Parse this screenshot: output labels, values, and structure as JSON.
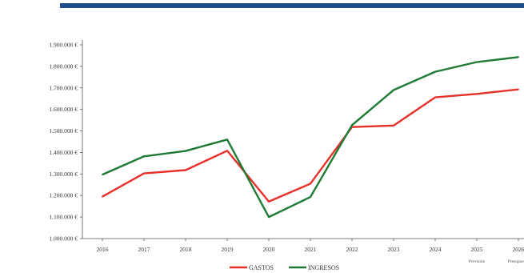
{
  "chart_data": {
    "type": "line",
    "categories": [
      "2016",
      "2017",
      "2018",
      "2019",
      "2020",
      "2021",
      "2022",
      "2023",
      "2024",
      "2025",
      "2026"
    ],
    "series": [
      {
        "name": "GASTOS",
        "color": "#e8302a",
        "values": [
          1195000,
          1303000,
          1318000,
          1408000,
          1172000,
          1255000,
          1518000,
          1525000,
          1656000,
          1672000,
          1693000
        ]
      },
      {
        "name": "INGRESOS",
        "color": "#1e7a34",
        "values": [
          1297000,
          1382000,
          1407000,
          1460000,
          1100000,
          1193000,
          1527000,
          1690000,
          1775000,
          1820000,
          1843000
        ]
      }
    ],
    "ylim": [
      1000000,
      1900000
    ],
    "yticks": [
      "1.000.000 €",
      "1.100.000 €",
      "1.200.000 €",
      "1.300.000 €",
      "1.400.000 €",
      "1.500.000 €",
      "1.600.000 €",
      "1.700.000 €",
      "1.800.000 €",
      "1.900.000 €"
    ],
    "xtick_notes": [
      {
        "category": "2025",
        "text": "Previsión"
      },
      {
        "category": "2026",
        "text": "Presupuesto"
      }
    ],
    "legend_position": "bottom-center",
    "grid": false,
    "header_color": "#1f4e8c"
  }
}
